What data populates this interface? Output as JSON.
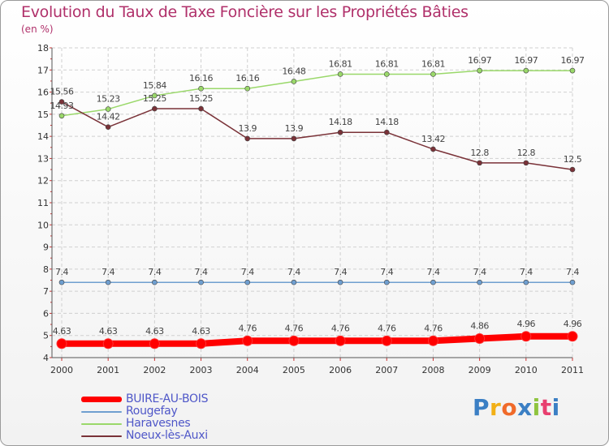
{
  "chart_data": {
    "type": "line",
    "title": "Evolution du Taux de Taxe Foncière sur les Propriétés Bâties",
    "ylabel": "(en %)",
    "xlabel": "",
    "categories": [
      "2000",
      "2001",
      "2002",
      "2003",
      "2004",
      "2005",
      "2006",
      "2007",
      "2008",
      "2009",
      "2010",
      "2011"
    ],
    "ylim": [
      4,
      18
    ],
    "yticks": [
      "4",
      "5",
      "6",
      "7",
      "8",
      "9",
      "10",
      "11",
      "12",
      "13",
      "14",
      "15",
      "16",
      "17",
      "18"
    ],
    "grid": true,
    "series": [
      {
        "name": "BUIRE-AU-BOIS",
        "color": "#ff0000",
        "values": [
          4.63,
          4.63,
          4.63,
          4.63,
          4.76,
          4.76,
          4.76,
          4.76,
          4.76,
          4.86,
          4.96,
          4.96
        ],
        "labels": [
          "4.63",
          "4.63",
          "4.63",
          "4.63",
          "4.76",
          "4.76",
          "4.76",
          "4.76",
          "4.76",
          "4.86",
          "4.96",
          "4.96"
        ]
      },
      {
        "name": "Rougefay",
        "color": "#6f9fd0",
        "values": [
          7.4,
          7.4,
          7.4,
          7.4,
          7.4,
          7.4,
          7.4,
          7.4,
          7.4,
          7.4,
          7.4,
          7.4
        ],
        "labels": [
          "7.4",
          "7.4",
          "7.4",
          "7.4",
          "7.4",
          "7.4",
          "7.4",
          "7.4",
          "7.4",
          "7.4",
          "7.4",
          "7.4"
        ]
      },
      {
        "name": "Haravesnes",
        "color": "#9ad86a",
        "values": [
          14.93,
          15.23,
          15.84,
          16.16,
          16.16,
          16.48,
          16.81,
          16.81,
          16.81,
          16.97,
          16.97,
          16.97
        ],
        "labels": [
          "14.93",
          "15.23",
          "15.84",
          "16.16",
          "16.16",
          "16.48",
          "16.81",
          "16.81",
          "16.81",
          "16.97",
          "16.97",
          "16.97"
        ]
      },
      {
        "name": "Noeux-lès-Auxi",
        "color": "#7a3238",
        "values": [
          15.56,
          14.42,
          15.25,
          15.25,
          13.9,
          13.9,
          14.18,
          14.18,
          13.42,
          12.8,
          12.8,
          12.5
        ],
        "labels": [
          "15.56",
          "14.42",
          "15.25",
          "15.25",
          "13.9",
          "13.9",
          "14.18",
          "14.18",
          "13.42",
          "12.8",
          "12.8",
          "12.5"
        ]
      }
    ]
  },
  "legend": {
    "items": [
      "BUIRE-AU-BOIS",
      "Rougefay",
      "Haravesnes",
      "Noeux-lès-Auxi"
    ]
  },
  "logo": {
    "text": "Proxiti",
    "colors": [
      "#3b7fc4",
      "#f2b016",
      "#f06a2a",
      "#3b7fc4",
      "#8fc43f",
      "#e83f6f",
      "#3b7fc4"
    ]
  }
}
